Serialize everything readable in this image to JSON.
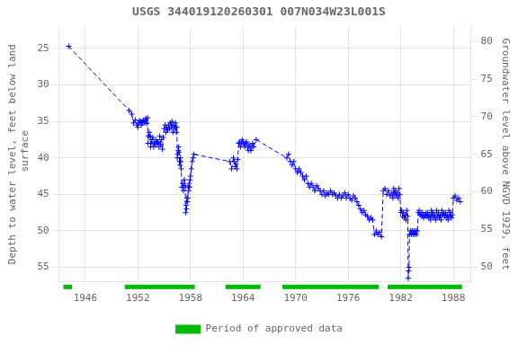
{
  "chart_data": {
    "type": "line",
    "title": "USGS 344019120260301 007N034W23L001S",
    "ylabel": "Depth to water level, feet below land\n surface",
    "y2label": "Groundwater level above NGVD 1929, feet",
    "xlim": [
      1943,
      1990
    ],
    "xticks": [
      1946,
      1952,
      1958,
      1964,
      1970,
      1976,
      1982,
      1988
    ],
    "ylim": [
      57,
      22
    ],
    "yticks": [
      25,
      30,
      35,
      40,
      45,
      50,
      55
    ],
    "y2lim": [
      48,
      82
    ],
    "y2ticks": [
      50,
      55,
      60,
      65,
      70,
      75,
      80
    ],
    "grid": true,
    "legend": "bottom",
    "series": [
      {
        "type": "line",
        "color": "#0000ff",
        "line_style": "dashed",
        "marker": "plus",
        "x": [
          1944.1,
          1951.0,
          1951.3,
          1951.5,
          1951.7,
          1951.9,
          1952.0,
          1952.1,
          1952.2,
          1952.3,
          1952.4,
          1952.5,
          1952.6,
          1952.7,
          1952.8,
          1952.9,
          1953.0,
          1953.1,
          1953.15,
          1953.2,
          1953.3,
          1953.4,
          1953.45,
          1953.5,
          1953.6,
          1953.7,
          1953.8,
          1953.9,
          1954.0,
          1954.1,
          1954.2,
          1954.3,
          1954.4,
          1954.5,
          1954.6,
          1954.7,
          1954.8,
          1954.9,
          1955.0,
          1955.1,
          1955.2,
          1955.3,
          1955.4,
          1955.5,
          1955.6,
          1955.7,
          1955.8,
          1955.9,
          1956.0,
          1956.1,
          1956.2,
          1956.3,
          1956.4,
          1956.45,
          1956.5,
          1956.55,
          1956.6,
          1956.65,
          1956.7,
          1956.75,
          1956.8,
          1956.85,
          1956.9,
          1956.95,
          1957.0,
          1957.1,
          1957.2,
          1957.3,
          1957.4,
          1957.45,
          1957.5,
          1957.55,
          1957.6,
          1957.65,
          1957.7,
          1957.75,
          1957.8,
          1957.85,
          1957.9,
          1957.95,
          1958.0,
          1958.1,
          1958.2,
          1958.3,
          1958.4,
          1962.5,
          1962.7,
          1962.9,
          1963.0,
          1963.1,
          1963.2,
          1963.3,
          1963.4,
          1963.5,
          1963.6,
          1963.7,
          1963.8,
          1963.9,
          1964.0,
          1964.1,
          1964.2,
          1964.3,
          1964.4,
          1964.5,
          1964.6,
          1964.7,
          1964.8,
          1964.9,
          1965.0,
          1965.1,
          1965.2,
          1965.5,
          1969.0,
          1969.2,
          1969.4,
          1969.6,
          1969.8,
          1970.0,
          1970.2,
          1970.4,
          1970.6,
          1970.8,
          1971.0,
          1971.2,
          1971.4,
          1971.6,
          1971.8,
          1972.0,
          1972.2,
          1972.4,
          1972.6,
          1972.8,
          1973.0,
          1973.2,
          1973.4,
          1973.6,
          1973.8,
          1974.0,
          1974.2,
          1974.4,
          1974.6,
          1974.8,
          1975.0,
          1975.2,
          1975.4,
          1975.6,
          1975.8,
          1976.0,
          1976.2,
          1976.4,
          1976.6,
          1976.8,
          1977.0,
          1977.2,
          1977.4,
          1977.6,
          1977.8,
          1978.0,
          1978.2,
          1978.4,
          1978.6,
          1978.8,
          1979.0,
          1979.2,
          1979.4,
          1979.6,
          1979.8,
          1980.0,
          1980.2,
          1980.4,
          1980.6,
          1980.8,
          1981.0,
          1981.1,
          1981.2,
          1981.3,
          1981.4,
          1981.5,
          1981.6,
          1981.7,
          1981.8,
          1981.9,
          1982.0,
          1982.1,
          1982.2,
          1982.3,
          1982.4,
          1982.5,
          1982.6,
          1982.7,
          1982.8,
          1982.85,
          1982.9,
          1982.95,
          1983.0,
          1983.1,
          1983.2,
          1983.3,
          1983.4,
          1983.5,
          1983.6,
          1983.7,
          1983.8,
          1983.9,
          1984.0,
          1984.1,
          1984.2,
          1984.3,
          1984.4,
          1984.5,
          1984.6,
          1984.7,
          1984.8,
          1984.9,
          1985.0,
          1985.1,
          1985.2,
          1985.3,
          1985.4,
          1985.5,
          1985.6,
          1985.7,
          1985.8,
          1985.9,
          1986.0,
          1986.1,
          1986.2,
          1986.3,
          1986.4,
          1986.5,
          1986.6,
          1986.7,
          1986.8,
          1986.9,
          1987.0,
          1987.1,
          1987.2,
          1987.3,
          1987.4,
          1987.5,
          1987.6,
          1987.7,
          1987.8,
          1987.9,
          1988.0,
          1988.2,
          1988.4,
          1988.6,
          1988.8
        ],
        "values": [
          24.7,
          33.5,
          34.0,
          35.2,
          34.8,
          35.5,
          35.8,
          35.2,
          34.9,
          35.0,
          35.5,
          35.1,
          34.8,
          35.2,
          35.0,
          34.6,
          35.3,
          34.5,
          38.0,
          37.0,
          36.5,
          37.0,
          38.5,
          37.5,
          38.0,
          37.2,
          38.5,
          37.8,
          38.2,
          37.5,
          38.0,
          37.8,
          38.5,
          37.0,
          38.2,
          37.5,
          38.8,
          37.2,
          36.0,
          35.5,
          36.5,
          35.8,
          36.2,
          35.5,
          36.0,
          35.2,
          35.8,
          35.0,
          36.5,
          35.5,
          36.0,
          35.2,
          36.5,
          35.8,
          40.0,
          39.5,
          39.0,
          38.5,
          39.2,
          40.5,
          41.0,
          40.0,
          40.5,
          41.5,
          44.0,
          43.5,
          44.5,
          43.0,
          43.8,
          47.5,
          46.5,
          47.0,
          45.5,
          46.0,
          45.5,
          44.0,
          44.5,
          43.5,
          44.0,
          43.0,
          42.5,
          41.5,
          40.5,
          40.0,
          39.5,
          40.5,
          41.5,
          40.0,
          40.5,
          41.2,
          40.8,
          41.5,
          40.2,
          38.0,
          37.8,
          38.5,
          38.0,
          37.5,
          37.8,
          38.2,
          38.5,
          38.0,
          37.8,
          38.5,
          39.0,
          38.2,
          38.5,
          39.0,
          38.5,
          38.0,
          38.5,
          37.5,
          40.0,
          39.5,
          40.5,
          41.0,
          40.5,
          41.5,
          42.0,
          41.5,
          42.0,
          42.5,
          43.0,
          42.5,
          43.5,
          44.0,
          43.5,
          44.0,
          44.5,
          43.8,
          44.2,
          44.5,
          45.0,
          44.5,
          45.2,
          44.8,
          45.0,
          44.5,
          45.0,
          44.8,
          45.2,
          45.5,
          45.0,
          45.5,
          45.2,
          44.8,
          45.5,
          45.0,
          45.5,
          45.8,
          45.2,
          45.5,
          46.0,
          46.5,
          47.0,
          47.5,
          47.2,
          47.8,
          48.0,
          48.5,
          48.2,
          48.5,
          50.5,
          50.0,
          50.5,
          50.2,
          50.8,
          44.5,
          44.2,
          45.0,
          44.5,
          45.2,
          44.8,
          45.5,
          44.2,
          45.0,
          44.5,
          45.2,
          44.8,
          45.5,
          44.2,
          45.0,
          47.5,
          47.2,
          48.0,
          47.5,
          48.2,
          47.8,
          48.5,
          47.2,
          48.0,
          56.5,
          55.5,
          55.0,
          50.5,
          50.0,
          50.5,
          50.0,
          50.5,
          50.0,
          50.5,
          50.0,
          50.5,
          50.0,
          47.5,
          47.2,
          47.8,
          47.5,
          48.0,
          47.5,
          48.2,
          47.8,
          48.0,
          47.5,
          48.0,
          47.5,
          48.2,
          47.8,
          48.5,
          47.2,
          48.0,
          47.5,
          48.2,
          47.8,
          48.5,
          47.2,
          48.0,
          47.5,
          48.2,
          47.8,
          48.5,
          47.2,
          47.8,
          47.5,
          48.0,
          47.5,
          48.2,
          47.8,
          48.5,
          47.2,
          48.0,
          47.5,
          48.2,
          47.8,
          45.5,
          45.2,
          45.8,
          45.5,
          46.0
        ]
      },
      {
        "type": "range",
        "name": "Period of approved data",
        "color": "#00bb00",
        "periods": [
          [
            1943.5,
            1944.5
          ],
          [
            1950.5,
            1958.5
          ],
          [
            1962.0,
            1966.0
          ],
          [
            1968.5,
            1979.5
          ],
          [
            1980.5,
            1989.0
          ]
        ]
      }
    ]
  }
}
